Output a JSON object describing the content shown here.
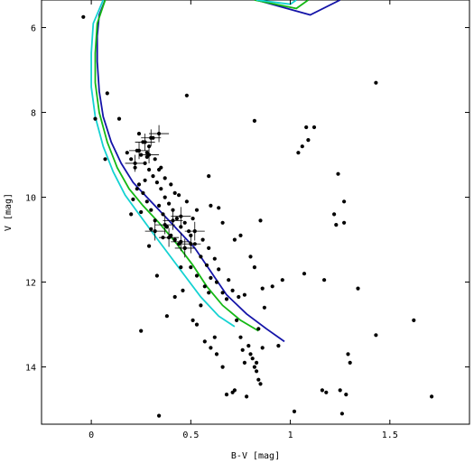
{
  "chart_data": {
    "type": "scatter",
    "title": "",
    "xlabel": "B-V [mag]",
    "ylabel": "V [mag]",
    "xlim": [
      -0.25,
      1.9
    ],
    "ylim": [
      15.35,
      5.35
    ],
    "y_inverted": true,
    "grid": false,
    "legend": "none",
    "x_ticks": [
      {
        "value": 0,
        "label": "0"
      },
      {
        "value": 0.5,
        "label": "0.5"
      },
      {
        "value": 1,
        "label": "1"
      },
      {
        "value": 1.5,
        "label": "1.5"
      }
    ],
    "y_ticks": [
      {
        "value": 6,
        "label": "6"
      },
      {
        "value": 8,
        "label": "8"
      },
      {
        "value": 10,
        "label": "10"
      },
      {
        "value": 12,
        "label": "12"
      },
      {
        "value": 14,
        "label": "14"
      }
    ],
    "series": [
      {
        "kind": "points",
        "color": "#000000",
        "points": [
          [
            -0.04,
            5.75
          ],
          [
            0.08,
            7.55
          ],
          [
            0.02,
            8.15
          ],
          [
            0.14,
            8.15
          ],
          [
            0.07,
            9.1
          ],
          [
            0.48,
            7.6
          ],
          [
            0.82,
            8.2
          ],
          [
            1.43,
            7.3
          ],
          [
            1.04,
            8.95
          ],
          [
            1.06,
            8.8
          ],
          [
            1.09,
            8.65
          ],
          [
            1.08,
            8.35
          ],
          [
            1.12,
            8.35
          ],
          [
            1.24,
            9.45
          ],
          [
            1.27,
            10.1
          ],
          [
            1.22,
            10.4
          ],
          [
            1.23,
            10.65
          ],
          [
            1.27,
            10.6
          ],
          [
            0.59,
            9.5
          ],
          [
            0.6,
            10.2
          ],
          [
            0.66,
            10.6
          ],
          [
            0.64,
            10.25
          ],
          [
            0.72,
            11.0
          ],
          [
            0.75,
            10.9
          ],
          [
            0.8,
            11.4
          ],
          [
            0.82,
            11.65
          ],
          [
            0.85,
            10.55
          ],
          [
            0.91,
            12.1
          ],
          [
            0.96,
            11.95
          ],
          [
            1.07,
            11.8
          ],
          [
            1.17,
            11.95
          ],
          [
            1.34,
            12.15
          ],
          [
            0.86,
            12.15
          ],
          [
            0.87,
            12.6
          ],
          [
            0.84,
            13.1
          ],
          [
            0.86,
            13.55
          ],
          [
            0.94,
            13.5
          ],
          [
            1.16,
            14.55
          ],
          [
            1.18,
            14.6
          ],
          [
            1.25,
            14.55
          ],
          [
            1.28,
            14.65
          ],
          [
            1.26,
            15.1
          ],
          [
            1.29,
            13.7
          ],
          [
            1.3,
            13.9
          ],
          [
            1.43,
            13.25
          ],
          [
            1.62,
            12.9
          ],
          [
            1.71,
            14.7
          ],
          [
            1.02,
            15.05
          ],
          [
            0.25,
            13.15
          ],
          [
            0.34,
            15.15
          ],
          [
            0.33,
            11.85
          ],
          [
            0.38,
            12.8
          ],
          [
            0.42,
            12.35
          ],
          [
            0.46,
            12.2
          ],
          [
            0.47,
            11.2
          ],
          [
            0.5,
            11.65
          ],
          [
            0.51,
            12.9
          ],
          [
            0.53,
            13.0
          ],
          [
            0.55,
            12.55
          ],
          [
            0.57,
            13.4
          ],
          [
            0.6,
            13.55
          ],
          [
            0.62,
            13.3
          ],
          [
            0.63,
            13.7
          ],
          [
            0.66,
            14.0
          ],
          [
            0.68,
            14.65
          ],
          [
            0.71,
            14.6
          ],
          [
            0.72,
            14.55
          ],
          [
            0.73,
            12.9
          ],
          [
            0.75,
            13.3
          ],
          [
            0.76,
            13.6
          ],
          [
            0.77,
            13.9
          ],
          [
            0.78,
            14.7
          ],
          [
            0.79,
            13.5
          ],
          [
            0.8,
            13.7
          ],
          [
            0.81,
            13.8
          ],
          [
            0.82,
            14.0
          ],
          [
            0.83,
            14.1
          ],
          [
            0.84,
            14.3
          ],
          [
            0.85,
            14.4
          ],
          [
            0.83,
            13.9
          ],
          [
            0.77,
            12.3
          ],
          [
            0.68,
            12.4
          ],
          [
            0.66,
            12.25
          ],
          [
            0.63,
            12.0
          ],
          [
            0.6,
            11.9
          ],
          [
            0.58,
            11.6
          ],
          [
            0.55,
            11.4
          ],
          [
            0.52,
            11.1
          ],
          [
            0.5,
            10.9
          ],
          [
            0.45,
            10.7
          ],
          [
            0.43,
            10.5
          ],
          [
            0.41,
            10.3
          ],
          [
            0.39,
            10.15
          ],
          [
            0.37,
            10.0
          ],
          [
            0.35,
            9.8
          ],
          [
            0.33,
            9.65
          ],
          [
            0.31,
            9.5
          ],
          [
            0.29,
            9.35
          ],
          [
            0.27,
            9.2
          ],
          [
            0.25,
            9.0
          ],
          [
            0.23,
            8.9
          ],
          [
            0.22,
            9.3
          ],
          [
            0.2,
            10.4
          ],
          [
            0.24,
            9.7
          ],
          [
            0.26,
            9.9
          ],
          [
            0.28,
            10.1
          ],
          [
            0.3,
            10.3
          ],
          [
            0.32,
            10.55
          ],
          [
            0.34,
            10.2
          ],
          [
            0.36,
            10.4
          ],
          [
            0.38,
            10.7
          ],
          [
            0.4,
            10.9
          ],
          [
            0.29,
            11.15
          ],
          [
            0.3,
            10.75
          ],
          [
            0.36,
            10.95
          ],
          [
            0.42,
            11.0
          ],
          [
            0.44,
            11.1
          ],
          [
            0.47,
            10.6
          ],
          [
            0.49,
            10.8
          ],
          [
            0.51,
            10.5
          ],
          [
            0.53,
            10.3
          ],
          [
            0.48,
            10.1
          ],
          [
            0.44,
            9.95
          ],
          [
            0.4,
            9.7
          ],
          [
            0.37,
            9.55
          ],
          [
            0.34,
            9.35
          ],
          [
            0.32,
            9.1
          ],
          [
            0.28,
            8.95
          ],
          [
            0.26,
            8.7
          ],
          [
            0.24,
            8.5
          ],
          [
            0.29,
            8.8
          ],
          [
            0.31,
            8.6
          ],
          [
            0.27,
            9.6
          ],
          [
            0.23,
            9.8
          ],
          [
            0.21,
            10.05
          ],
          [
            0.25,
            10.35
          ],
          [
            0.56,
            11.0
          ],
          [
            0.59,
            11.2
          ],
          [
            0.62,
            11.45
          ],
          [
            0.64,
            11.7
          ],
          [
            0.69,
            11.95
          ],
          [
            0.71,
            12.2
          ],
          [
            0.74,
            12.35
          ],
          [
            0.59,
            12.25
          ],
          [
            0.57,
            12.1
          ],
          [
            0.53,
            11.85
          ],
          [
            0.45,
            11.65
          ],
          [
            0.2,
            9.1
          ],
          [
            0.18,
            8.95
          ],
          [
            0.28,
            9.05
          ],
          [
            0.35,
            9.3
          ],
          [
            0.42,
            9.9
          ]
        ]
      },
      {
        "kind": "errorbar_points",
        "color": "#000000",
        "points": [
          [
            0.34,
            8.5,
            0.05,
            0.2
          ],
          [
            0.3,
            8.6,
            0.05,
            0.2
          ],
          [
            0.27,
            8.7,
            0.05,
            0.2
          ],
          [
            0.24,
            8.9,
            0.05,
            0.2
          ],
          [
            0.29,
            9.0,
            0.05,
            0.2
          ],
          [
            0.22,
            9.2,
            0.05,
            0.2
          ],
          [
            0.45,
            10.45,
            0.05,
            0.22
          ],
          [
            0.41,
            10.55,
            0.05,
            0.22
          ],
          [
            0.37,
            10.65,
            0.05,
            0.22
          ],
          [
            0.32,
            10.8,
            0.05,
            0.22
          ],
          [
            0.39,
            10.95,
            0.05,
            0.22
          ],
          [
            0.45,
            11.05,
            0.05,
            0.22
          ],
          [
            0.5,
            11.1,
            0.05,
            0.22
          ],
          [
            0.47,
            11.2,
            0.05,
            0.22
          ],
          [
            0.52,
            10.8,
            0.05,
            0.22
          ]
        ]
      },
      {
        "kind": "line",
        "color": "#1414a8",
        "points": [
          [
            0.07,
            5.35
          ],
          [
            0.04,
            5.7
          ],
          [
            0.03,
            6.2
          ],
          [
            0.03,
            6.8
          ],
          [
            0.04,
            7.5
          ],
          [
            0.06,
            8.1
          ],
          [
            0.1,
            8.7
          ],
          [
            0.15,
            9.2
          ],
          [
            0.21,
            9.65
          ],
          [
            0.28,
            10.0
          ],
          [
            0.35,
            10.35
          ],
          [
            0.43,
            10.75
          ],
          [
            0.52,
            11.2
          ],
          [
            0.6,
            11.75
          ],
          [
            0.68,
            12.3
          ],
          [
            0.78,
            12.75
          ],
          [
            0.88,
            13.1
          ],
          [
            0.97,
            13.4
          ]
        ]
      },
      {
        "kind": "line",
        "color": "#14b814",
        "points": [
          [
            0.07,
            5.35
          ],
          [
            0.03,
            5.9
          ],
          [
            0.02,
            6.6
          ],
          [
            0.02,
            7.3
          ],
          [
            0.04,
            8.0
          ],
          [
            0.08,
            8.7
          ],
          [
            0.13,
            9.3
          ],
          [
            0.19,
            9.8
          ],
          [
            0.26,
            10.2
          ],
          [
            0.34,
            10.6
          ],
          [
            0.43,
            11.1
          ],
          [
            0.51,
            11.6
          ],
          [
            0.58,
            12.1
          ],
          [
            0.66,
            12.55
          ],
          [
            0.75,
            12.9
          ],
          [
            0.84,
            13.15
          ]
        ]
      },
      {
        "kind": "line",
        "color": "#14d2d2",
        "points": [
          [
            0.06,
            5.35
          ],
          [
            0.01,
            5.9
          ],
          [
            0.0,
            6.6
          ],
          [
            0.0,
            7.4
          ],
          [
            0.02,
            8.1
          ],
          [
            0.06,
            8.8
          ],
          [
            0.11,
            9.4
          ],
          [
            0.17,
            9.95
          ],
          [
            0.24,
            10.4
          ],
          [
            0.31,
            10.85
          ],
          [
            0.39,
            11.35
          ],
          [
            0.47,
            11.85
          ],
          [
            0.55,
            12.35
          ],
          [
            0.64,
            12.8
          ],
          [
            0.72,
            13.05
          ]
        ]
      },
      {
        "kind": "line",
        "color": "#1414a8",
        "points": [
          [
            0.83,
            5.35
          ],
          [
            1.1,
            5.7
          ],
          [
            1.25,
            5.35
          ]
        ]
      },
      {
        "kind": "line",
        "color": "#14b814",
        "points": [
          [
            0.82,
            5.35
          ],
          [
            1.03,
            5.55
          ],
          [
            1.09,
            5.35
          ]
        ]
      },
      {
        "kind": "line",
        "color": "#14d2d2",
        "points": [
          [
            0.83,
            5.35
          ],
          [
            1.0,
            5.45
          ],
          [
            1.03,
            5.35
          ]
        ]
      }
    ]
  }
}
